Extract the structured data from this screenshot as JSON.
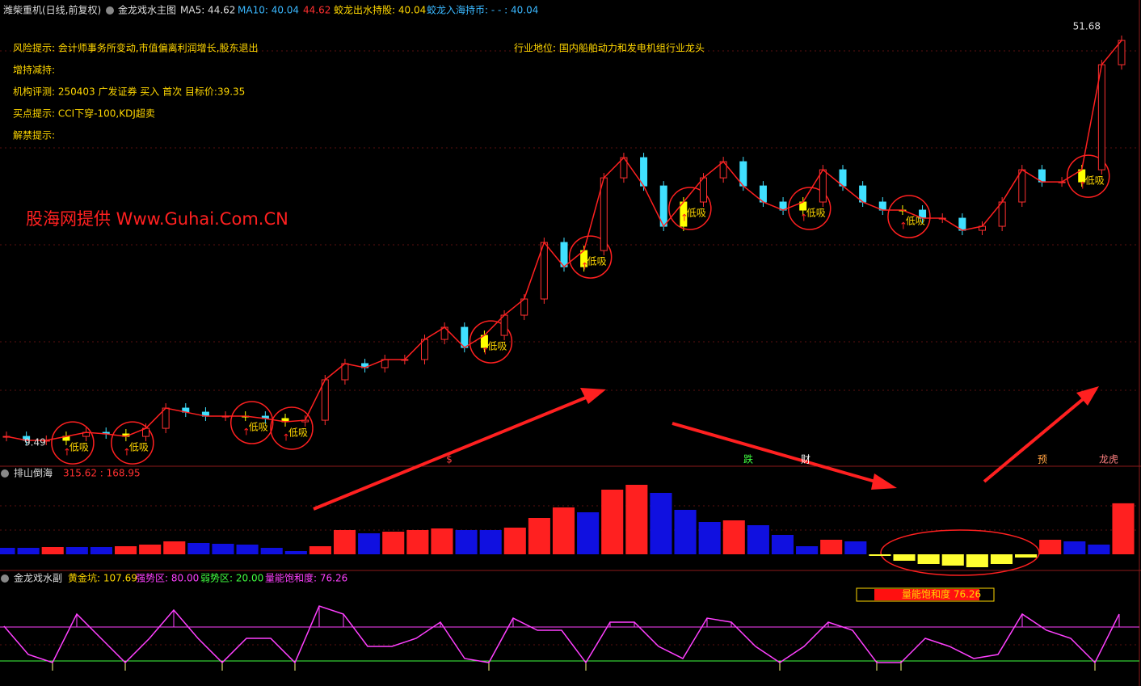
{
  "chart_data": {
    "type": "candlestick",
    "header": {
      "stock": "潍柴重机(日线,前复权)",
      "indicator": "金龙戏水主图",
      "ma5": "MA5: 44.62",
      "ma10": "MA10: 40.04",
      "ma5b": "44.62",
      "hold": "蛟龙出水持股: 40.04",
      "sell": "蛟龙入海持币: - - : 40.04"
    },
    "info": [
      "风险提示: 会计师事务所变动,市值偏离利润增长,股东退出",
      "增持减持:",
      "机构评测: 250403 广发证券 买入 首次 目标价:39.35",
      "买点提示: CCI下穿-100,KDJ超卖",
      "解禁提示:"
    ],
    "industry": "行业地位: 国内船舶动力和发电机组行业龙头",
    "watermark": "股海网提供 Www.Guhai.Com.CN",
    "ylim": [
      7.28,
      53.15
    ],
    "max_marker": {
      "value": 51.68,
      "label": "51.68"
    },
    "min_marker": {
      "value": 9.49,
      "label": "9.49"
    },
    "closes": [
      10.14,
      9.74,
      9.74,
      10.14,
      10.55,
      10.39,
      10.14,
      10.96,
      13.01,
      12.6,
      12.19,
      12.19,
      12.19,
      11.95,
      11.62,
      11.78,
      15.88,
      17.52,
      17.11,
      17.93,
      17.93,
      19.97,
      21.2,
      19.15,
      20.38,
      22.43,
      24.07,
      29.8,
      27.34,
      28.98,
      36.35,
      38.4,
      35.53,
      31.44,
      33.9,
      36.35,
      37.99,
      35.53,
      33.9,
      33.08,
      33.9,
      37.17,
      35.53,
      33.9,
      33.08,
      33.08,
      32.26,
      32.26,
      31.03,
      31.44,
      33.9,
      37.17,
      35.94,
      35.94,
      37.17,
      47.82,
      50.28
    ],
    "signals": [
      null,
      null,
      null,
      "低吸",
      null,
      null,
      "低吸",
      null,
      null,
      null,
      null,
      null,
      "低吸",
      null,
      "低吸",
      null,
      null,
      null,
      null,
      null,
      null,
      null,
      null,
      null,
      "低吸",
      null,
      null,
      null,
      null,
      "低吸",
      null,
      null,
      null,
      null,
      "低吸",
      null,
      null,
      null,
      null,
      null,
      "低吸",
      null,
      null,
      null,
      null,
      "低吸",
      null,
      null,
      null,
      null,
      null,
      null,
      null,
      null,
      "低吸",
      null,
      null
    ],
    "events": [
      "$",
      "跌",
      "财",
      "预",
      "龙虎"
    ],
    "panel2": {
      "title": "排山倒海",
      "readout": "315.62 : 168.95",
      "ylim": [
        -95,
        470
      ],
      "values": [
        40,
        40,
        45,
        45,
        45,
        50,
        60,
        80,
        70,
        65,
        60,
        40,
        20,
        50,
        150,
        130,
        140,
        150,
        160,
        150,
        150,
        165,
        225,
        290,
        260,
        400,
        430,
        380,
        275,
        200,
        210,
        180,
        120,
        50,
        90,
        80,
        -10,
        -40,
        -60,
        -70,
        -80,
        -60,
        -20,
        90,
        80,
        60,
        315.62
      ]
    },
    "panel3": {
      "title": "金龙戏水副",
      "gold": "黄金坑: 107.69",
      "strong_label": "强势区: 80.00",
      "weak_label": "弱势区: 20.00",
      "energy_label": "量能饱和度: 76.26",
      "box": "量能饱和度 76.26",
      "strong": {
        "value": 80,
        "label": "80.00"
      },
      "weak": {
        "value": 20,
        "label": "20.00"
      },
      "ylim": [
        -18.6,
        148.6
      ],
      "values": [
        81.4,
        31.4,
        17.1,
        102.9,
        60,
        17.1,
        60,
        110,
        60,
        17.1,
        60,
        60,
        17.1,
        117.1,
        102.9,
        45.7,
        45.7,
        60,
        88.6,
        24.3,
        17.1,
        95.7,
        74.3,
        74.3,
        17.1,
        88.6,
        88.6,
        45.7,
        24.3,
        95.7,
        88.6,
        45.7,
        17.1,
        45.7,
        88.6,
        74.3,
        17.1,
        17.1,
        60,
        45.7,
        24.3,
        31.4,
        102.9,
        74.3,
        60,
        17.1,
        102.9
      ]
    }
  }
}
